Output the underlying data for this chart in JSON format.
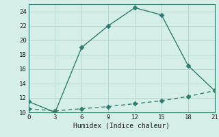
{
  "xlabel": "Humidex (Indice chaleur)",
  "line1_x": [
    0,
    3,
    6,
    9,
    12,
    15,
    18,
    21
  ],
  "line1_y": [
    11.5,
    10.0,
    19.0,
    22.0,
    24.5,
    23.5,
    16.5,
    13.0
  ],
  "line2_x": [
    0,
    3,
    6,
    9,
    12,
    15,
    18,
    21
  ],
  "line2_y": [
    10.5,
    10.2,
    10.5,
    10.8,
    11.2,
    11.6,
    12.2,
    13.0
  ],
  "line_color": "#2e7d6e",
  "bg_color": "#d6eee8",
  "grid_color": "#b8d8d0",
  "xlim": [
    0,
    21
  ],
  "ylim": [
    10,
    25
  ],
  "xticks": [
    0,
    3,
    6,
    9,
    12,
    15,
    18,
    21
  ],
  "yticks": [
    10,
    12,
    14,
    16,
    18,
    20,
    22,
    24
  ],
  "markersize": 3.5,
  "linewidth": 1.0
}
